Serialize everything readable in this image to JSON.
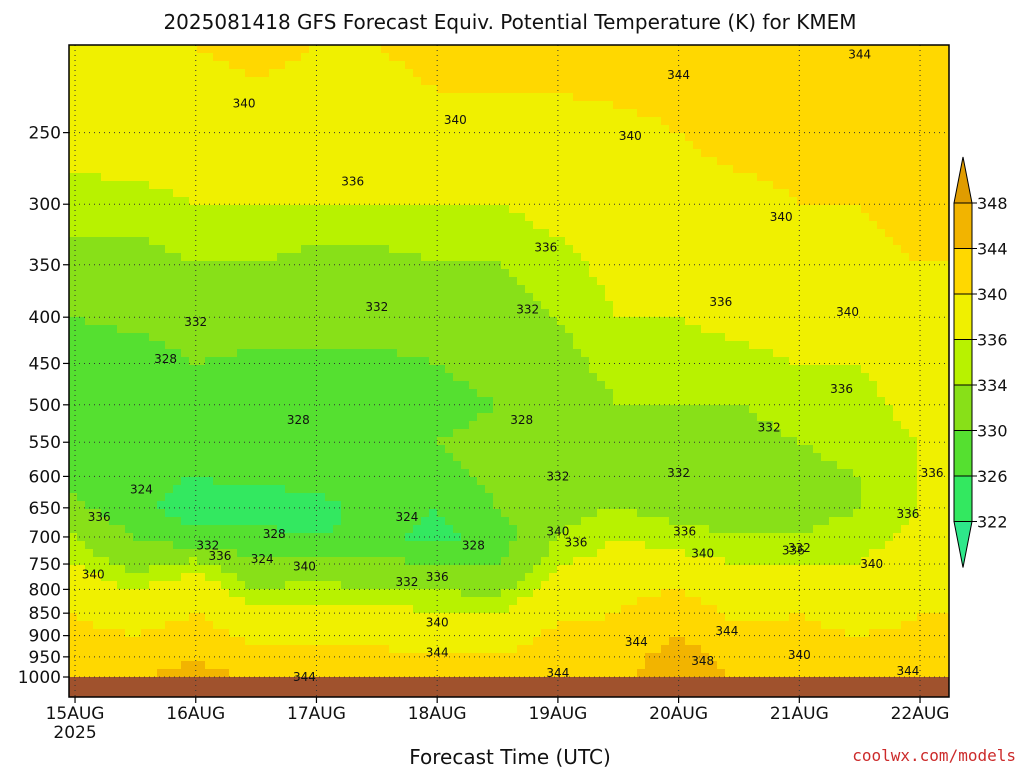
{
  "chart_data": {
    "type": "heatmap",
    "title": "2025081418 GFS Forecast Equiv. Potential Temperature (K) for KMEM",
    "xlabel": "Forecast Time (UTC)",
    "ylabel": "",
    "x_ticks": [
      {
        "label": "15AUG",
        "sub": "2025"
      },
      {
        "label": "16AUG",
        "sub": ""
      },
      {
        "label": "17AUG",
        "sub": ""
      },
      {
        "label": "18AUG",
        "sub": ""
      },
      {
        "label": "19AUG",
        "sub": ""
      },
      {
        "label": "20AUG",
        "sub": ""
      },
      {
        "label": "21AUG",
        "sub": ""
      },
      {
        "label": "22AUG",
        "sub": ""
      }
    ],
    "x_days": [
      0,
      1,
      2,
      3,
      4,
      5,
      6,
      7
    ],
    "xlim": [
      -0.05,
      7.24
    ],
    "y_ticks": [
      "250",
      "300",
      "350",
      "400",
      "450",
      "500",
      "550",
      "600",
      "650",
      "700",
      "750",
      "800",
      "850",
      "900",
      "950",
      "1000"
    ],
    "y_levels": [
      250,
      300,
      350,
      400,
      450,
      500,
      550,
      600,
      650,
      700,
      750,
      800,
      850,
      900,
      950,
      1000
    ],
    "ylim": [
      1000,
      200
    ],
    "y_scale": "log",
    "grid": true,
    "colorbar": {
      "levels": [
        "322",
        "326",
        "330",
        "334",
        "336",
        "340",
        "344",
        "348"
      ],
      "colors": [
        "#2ee88a",
        "#33e860",
        "#55e030",
        "#88e018",
        "#b8f200",
        "#f0f000",
        "#ffd800",
        "#f2b400",
        "#e09c00"
      ]
    },
    "ground_color": "#a0522d",
    "profile": {
      "days": [
        0,
        0.5,
        1.0,
        1.5,
        2.0,
        2.5,
        3.0,
        3.5,
        4.0,
        4.5,
        5.0,
        5.5,
        6.0,
        6.5,
        7.0,
        7.24
      ],
      "levels": [
        1000,
        950,
        900,
        850,
        800,
        750,
        700,
        650,
        600,
        550,
        500,
        450,
        400,
        350,
        300,
        250,
        200
      ],
      "theta_e": [
        [
          344,
          344,
          345,
          344,
          344,
          343,
          342,
          342,
          343,
          344,
          345,
          344,
          344,
          343,
          344,
          344
        ],
        [
          343,
          342,
          344,
          341,
          341,
          341,
          340,
          340,
          342,
          342,
          346,
          342,
          343,
          341,
          343,
          343
        ],
        [
          341,
          340,
          342,
          339,
          339,
          339,
          338,
          338,
          341,
          341,
          344,
          341,
          341,
          340,
          341,
          341
        ],
        [
          340,
          338,
          340,
          337,
          337,
          337,
          336,
          336,
          339,
          340,
          342,
          339,
          340,
          338,
          340,
          340
        ],
        [
          338,
          336,
          338,
          334,
          335,
          334,
          334,
          333,
          338,
          339,
          340,
          338,
          338,
          337,
          339,
          339
        ],
        [
          336,
          333,
          335,
          331,
          332,
          331,
          330,
          330,
          336,
          337,
          337,
          336,
          336,
          336,
          338,
          338
        ],
        [
          334,
          330,
          327,
          327,
          326,
          327,
          325,
          328,
          334,
          336,
          335,
          334,
          334,
          335,
          337,
          337
        ],
        [
          331,
          327,
          324,
          324,
          325,
          327,
          326,
          330,
          333,
          334,
          333,
          332,
          333,
          334,
          336,
          336
        ],
        [
          329,
          327,
          326,
          327,
          327,
          328,
          329,
          331,
          332,
          333,
          332,
          332,
          333,
          334,
          336,
          336
        ],
        [
          328,
          327,
          328,
          329,
          329,
          329,
          330,
          331,
          332,
          333,
          333,
          333,
          334,
          335,
          336,
          336
        ],
        [
          327,
          327,
          329,
          329,
          329,
          329,
          329,
          330,
          332,
          334,
          334,
          334,
          335,
          335,
          337,
          337
        ],
        [
          328,
          328,
          330,
          329,
          329,
          329,
          330,
          331,
          333,
          335,
          335,
          335,
          336,
          336,
          338,
          338
        ],
        [
          330,
          331,
          332,
          332,
          332,
          332,
          332,
          333,
          334,
          336,
          336,
          337,
          338,
          338,
          339,
          339
        ],
        [
          333,
          333,
          334,
          334,
          333,
          333,
          334,
          334,
          335,
          337,
          338,
          338,
          339,
          339,
          340,
          340
        ],
        [
          335,
          335,
          336,
          336,
          336,
          336,
          336,
          336,
          337,
          338,
          339,
          339,
          340,
          340,
          341,
          341
        ],
        [
          337,
          338,
          338,
          338,
          338,
          338,
          339,
          339,
          339,
          339,
          340,
          341,
          341,
          342,
          342,
          342
        ],
        [
          339,
          340,
          340,
          341,
          340,
          340,
          341,
          341,
          341,
          342,
          342,
          343,
          343,
          344,
          343,
          343
        ]
      ]
    },
    "contour_labels": [
      {
        "day": 1.9,
        "level": 1000,
        "text": "344"
      },
      {
        "day": 3.0,
        "level": 940,
        "text": "344"
      },
      {
        "day": 4.0,
        "level": 990,
        "text": "344"
      },
      {
        "day": 4.65,
        "level": 915,
        "text": "344"
      },
      {
        "day": 5.4,
        "level": 890,
        "text": "344"
      },
      {
        "day": 6.9,
        "level": 985,
        "text": "344"
      },
      {
        "day": 6.5,
        "level": 205,
        "text": "344"
      },
      {
        "day": 5.2,
        "level": 960,
        "text": "348"
      },
      {
        "day": 0.15,
        "level": 770,
        "text": "340"
      },
      {
        "day": 1.9,
        "level": 755,
        "text": "340"
      },
      {
        "day": 3.0,
        "level": 870,
        "text": "340"
      },
      {
        "day": 4.0,
        "level": 690,
        "text": "340"
      },
      {
        "day": 5.2,
        "level": 730,
        "text": "340"
      },
      {
        "day": 6.0,
        "level": 945,
        "text": "340"
      },
      {
        "day": 6.6,
        "level": 750,
        "text": "340"
      },
      {
        "day": 5.85,
        "level": 310,
        "text": "340"
      },
      {
        "day": 6.4,
        "level": 395,
        "text": "340"
      },
      {
        "day": 1.4,
        "level": 232,
        "text": "340"
      },
      {
        "day": 3.15,
        "level": 242,
        "text": "340"
      },
      {
        "day": 4.6,
        "level": 252,
        "text": "340"
      },
      {
        "day": 5.0,
        "level": 216,
        "text": "344"
      },
      {
        "day": 0.2,
        "level": 665,
        "text": "336"
      },
      {
        "day": 1.2,
        "level": 735,
        "text": "336"
      },
      {
        "day": 3.0,
        "level": 775,
        "text": "336"
      },
      {
        "day": 4.15,
        "level": 710,
        "text": "336"
      },
      {
        "day": 5.05,
        "level": 690,
        "text": "336"
      },
      {
        "day": 5.95,
        "level": 725,
        "text": "336"
      },
      {
        "day": 6.9,
        "level": 660,
        "text": "336"
      },
      {
        "day": 7.1,
        "level": 595,
        "text": "336"
      },
      {
        "day": 6.35,
        "level": 480,
        "text": "336"
      },
      {
        "day": 5.35,
        "level": 385,
        "text": "336"
      },
      {
        "day": 3.9,
        "level": 335,
        "text": "336"
      },
      {
        "day": 2.3,
        "level": 283,
        "text": "336"
      },
      {
        "day": 1.0,
        "level": 405,
        "text": "332"
      },
      {
        "day": 2.5,
        "level": 390,
        "text": "332"
      },
      {
        "day": 3.75,
        "level": 392,
        "text": "332"
      },
      {
        "day": 5.0,
        "level": 595,
        "text": "332"
      },
      {
        "day": 5.75,
        "level": 530,
        "text": "332"
      },
      {
        "day": 6.0,
        "level": 720,
        "text": "332"
      },
      {
        "day": 2.75,
        "level": 785,
        "text": "332"
      },
      {
        "day": 4.0,
        "level": 600,
        "text": "332"
      },
      {
        "day": 1.1,
        "level": 715,
        "text": "332"
      },
      {
        "day": 0.75,
        "level": 445,
        "text": "328"
      },
      {
        "day": 1.85,
        "level": 520,
        "text": "328"
      },
      {
        "day": 1.65,
        "level": 695,
        "text": "328"
      },
      {
        "day": 3.7,
        "level": 520,
        "text": "328"
      },
      {
        "day": 3.3,
        "level": 715,
        "text": "328"
      },
      {
        "day": 0.55,
        "level": 620,
        "text": "324"
      },
      {
        "day": 1.55,
        "level": 740,
        "text": "324"
      },
      {
        "day": 2.75,
        "level": 665,
        "text": "324"
      }
    ]
  },
  "credit": "coolwx.com/models"
}
